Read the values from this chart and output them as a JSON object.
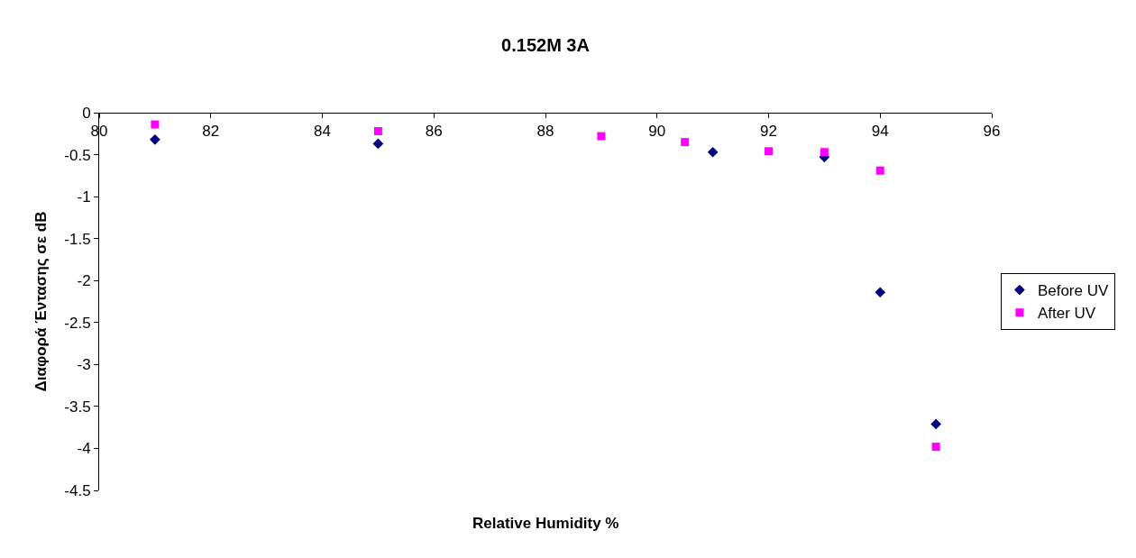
{
  "chart_data": {
    "type": "scatter",
    "title": "0.152M 3A",
    "xlabel": "Relative Humidity %",
    "ylabel": "Διαφορά Έντασης σε dB",
    "series": [
      {
        "name": "Before UV",
        "color": "#000080",
        "marker": "diamond",
        "x": [
          81,
          85,
          91,
          93,
          94,
          95
        ],
        "values": [
          -0.32,
          -0.37,
          -0.47,
          -0.53,
          -2.14,
          -3.71
        ]
      },
      {
        "name": "After UV",
        "color": "#ff00ff",
        "marker": "square",
        "x": [
          81,
          85,
          89,
          90.5,
          92,
          93,
          94,
          95
        ],
        "values": [
          -0.14,
          -0.22,
          -0.28,
          -0.35,
          -0.46,
          -0.47,
          -0.69,
          -3.98
        ]
      }
    ],
    "xlim": [
      80,
      96
    ],
    "xticks": [
      80,
      82,
      84,
      86,
      88,
      90,
      92,
      94,
      96
    ],
    "ylim": [
      -4.5,
      0
    ],
    "yticks": [
      0,
      -0.5,
      -1,
      -1.5,
      -2,
      -2.5,
      -3,
      -3.5,
      -4,
      -4.5
    ],
    "grid": false,
    "legend": "right"
  }
}
